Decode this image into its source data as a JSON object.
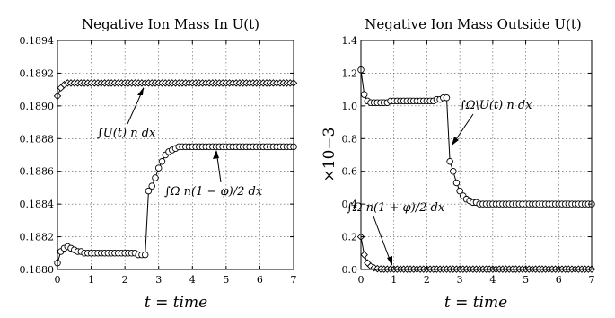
{
  "chart_data": [
    {
      "type": "line",
      "title": "Negative Ion Mass In U(t)",
      "xlabel": "t = time",
      "ylabel": "",
      "xlim": [
        0,
        7
      ],
      "ylim": [
        0.188,
        0.1894
      ],
      "xticks": [
        0,
        1,
        2,
        3,
        4,
        5,
        6,
        7
      ],
      "xtick_labels": [
        "0",
        "1",
        "2",
        "3",
        "4",
        "5",
        "6",
        "7"
      ],
      "yticks": [
        0.188,
        0.1882,
        0.1884,
        0.1886,
        0.1888,
        0.189,
        0.1892,
        0.1894
      ],
      "ytick_labels": [
        "0.1880",
        "0.1882",
        "0.1884",
        "0.1886",
        "0.1888",
        "0.1890",
        "0.1892",
        "0.1894"
      ],
      "grid": true,
      "series": [
        {
          "marker": "diamond",
          "x": [
            0,
            0.1,
            0.2,
            0.3,
            0.4,
            0.5,
            0.6,
            0.7,
            0.8,
            0.9,
            1.0,
            1.1,
            1.2,
            1.3,
            1.4,
            1.5,
            1.6,
            1.7,
            1.8,
            1.9,
            2.0,
            2.1,
            2.2,
            2.3,
            2.4,
            2.5,
            2.6,
            2.7,
            2.8,
            2.9,
            3.0,
            3.1,
            3.2,
            3.3,
            3.4,
            3.5,
            3.6,
            3.7,
            3.8,
            3.9,
            4.0,
            4.1,
            4.2,
            4.3,
            4.4,
            4.5,
            4.6,
            4.7,
            4.8,
            4.9,
            5.0,
            5.1,
            5.2,
            5.3,
            5.4,
            5.5,
            5.6,
            5.7,
            5.8,
            5.9,
            6.0,
            6.1,
            6.2,
            6.3,
            6.4,
            6.5,
            6.6,
            6.7,
            6.8,
            6.9,
            7.0
          ],
          "y": [
            0.18906,
            0.18911,
            0.18913,
            0.18914,
            0.18914,
            0.18914,
            0.18914,
            0.18914,
            0.18914,
            0.18914,
            0.18914,
            0.18914,
            0.18914,
            0.18914,
            0.18914,
            0.18914,
            0.18914,
            0.18914,
            0.18914,
            0.18914,
            0.18914,
            0.18914,
            0.18914,
            0.18914,
            0.18914,
            0.18914,
            0.18914,
            0.18914,
            0.18914,
            0.18914,
            0.18914,
            0.18914,
            0.18914,
            0.18914,
            0.18914,
            0.18914,
            0.18914,
            0.18914,
            0.18914,
            0.18914,
            0.18914,
            0.18914,
            0.18914,
            0.18914,
            0.18914,
            0.18914,
            0.18914,
            0.18914,
            0.18914,
            0.18914,
            0.18914,
            0.18914,
            0.18914,
            0.18914,
            0.18914,
            0.18914,
            0.18914,
            0.18914,
            0.18914,
            0.18914,
            0.18914,
            0.18914,
            0.18914,
            0.18914,
            0.18914,
            0.18914,
            0.18914,
            0.18914,
            0.18914,
            0.18914,
            0.18914
          ]
        },
        {
          "marker": "circle",
          "x": [
            0,
            0.1,
            0.2,
            0.3,
            0.4,
            0.5,
            0.6,
            0.7,
            0.8,
            0.9,
            1.0,
            1.1,
            1.2,
            1.3,
            1.4,
            1.5,
            1.6,
            1.7,
            1.8,
            1.9,
            2.0,
            2.1,
            2.2,
            2.3,
            2.4,
            2.5,
            2.6,
            2.7,
            2.8,
            2.9,
            3.0,
            3.1,
            3.2,
            3.3,
            3.4,
            3.5,
            3.6,
            3.7,
            3.8,
            3.9,
            4.0,
            4.1,
            4.2,
            4.3,
            4.4,
            4.5,
            4.6,
            4.7,
            4.8,
            4.9,
            5.0,
            5.1,
            5.2,
            5.3,
            5.4,
            5.5,
            5.6,
            5.7,
            5.8,
            5.9,
            6.0,
            6.1,
            6.2,
            6.3,
            6.4,
            6.5,
            6.6,
            6.7,
            6.8,
            6.9,
            7.0
          ],
          "y": [
            0.18804,
            0.18811,
            0.18813,
            0.18814,
            0.18813,
            0.18812,
            0.18811,
            0.18811,
            0.1881,
            0.1881,
            0.1881,
            0.1881,
            0.1881,
            0.1881,
            0.1881,
            0.1881,
            0.1881,
            0.1881,
            0.1881,
            0.1881,
            0.1881,
            0.1881,
            0.1881,
            0.1881,
            0.18809,
            0.18809,
            0.18809,
            0.18848,
            0.18851,
            0.18856,
            0.18862,
            0.18866,
            0.1887,
            0.18872,
            0.18873,
            0.18874,
            0.18875,
            0.18875,
            0.18875,
            0.18875,
            0.18875,
            0.18875,
            0.18875,
            0.18875,
            0.18875,
            0.18875,
            0.18875,
            0.18875,
            0.18875,
            0.18875,
            0.18875,
            0.18875,
            0.18875,
            0.18875,
            0.18875,
            0.18875,
            0.18875,
            0.18875,
            0.18875,
            0.18875,
            0.18875,
            0.18875,
            0.18875,
            0.18875,
            0.18875,
            0.18875,
            0.18875,
            0.18875,
            0.18875,
            0.18875,
            0.18875
          ]
        }
      ],
      "annotations": [
        {
          "text": "∫U(t) n dx",
          "arrow_to": [
            3.0,
            0.18914
          ]
        },
        {
          "text": "∫Ω n(1 − φ)/2 dx",
          "arrow_to": [
            4.7,
            0.18875
          ]
        }
      ]
    },
    {
      "type": "line",
      "title": "Negative Ion Mass Outside U(t)",
      "xlabel": "t = time",
      "ylabel": "×10−3",
      "xlim": [
        0,
        7
      ],
      "ylim": [
        0,
        1.4
      ],
      "xticks": [
        0,
        1,
        2,
        3,
        4,
        5,
        6,
        7
      ],
      "xtick_labels": [
        "0",
        "1",
        "2",
        "3",
        "4",
        "5",
        "6",
        "7"
      ],
      "yticks": [
        0,
        0.2,
        0.4,
        0.6,
        0.8,
        1.0,
        1.2,
        1.4
      ],
      "ytick_labels": [
        "0.0",
        "0.2",
        "0.4",
        "0.6",
        "0.8",
        "1.0",
        "1.2",
        "1.4"
      ],
      "grid": true,
      "series": [
        {
          "marker": "circle",
          "x": [
            0,
            0.1,
            0.2,
            0.3,
            0.4,
            0.5,
            0.6,
            0.7,
            0.8,
            0.9,
            1.0,
            1.1,
            1.2,
            1.3,
            1.4,
            1.5,
            1.6,
            1.7,
            1.8,
            1.9,
            2.0,
            2.1,
            2.2,
            2.3,
            2.4,
            2.5,
            2.6,
            2.7,
            2.8,
            2.9,
            3.0,
            3.1,
            3.2,
            3.3,
            3.4,
            3.5,
            3.6,
            3.7,
            3.8,
            3.9,
            4.0,
            4.1,
            4.2,
            4.3,
            4.4,
            4.5,
            4.6,
            4.7,
            4.8,
            4.9,
            5.0,
            5.1,
            5.2,
            5.3,
            5.4,
            5.5,
            5.6,
            5.7,
            5.8,
            5.9,
            6.0,
            6.1,
            6.2,
            6.3,
            6.4,
            6.5,
            6.6,
            6.7,
            6.8,
            6.9,
            7.0
          ],
          "y": [
            1.22,
            1.07,
            1.03,
            1.02,
            1.02,
            1.02,
            1.02,
            1.02,
            1.02,
            1.03,
            1.03,
            1.03,
            1.03,
            1.03,
            1.03,
            1.03,
            1.03,
            1.03,
            1.03,
            1.03,
            1.03,
            1.03,
            1.03,
            1.04,
            1.04,
            1.05,
            1.05,
            0.66,
            0.6,
            0.53,
            0.48,
            0.45,
            0.43,
            0.42,
            0.41,
            0.41,
            0.4,
            0.4,
            0.4,
            0.4,
            0.4,
            0.4,
            0.4,
            0.4,
            0.4,
            0.4,
            0.4,
            0.4,
            0.4,
            0.4,
            0.4,
            0.4,
            0.4,
            0.4,
            0.4,
            0.4,
            0.4,
            0.4,
            0.4,
            0.4,
            0.4,
            0.4,
            0.4,
            0.4,
            0.4,
            0.4,
            0.4,
            0.4,
            0.4,
            0.4,
            0.4
          ]
        },
        {
          "marker": "diamond",
          "x": [
            0,
            0.1,
            0.2,
            0.3,
            0.4,
            0.5,
            0.6,
            0.7,
            0.8,
            0.9,
            1.0,
            1.1,
            1.2,
            1.3,
            1.4,
            1.5,
            1.6,
            1.7,
            1.8,
            1.9,
            2.0,
            2.1,
            2.2,
            2.3,
            2.4,
            2.5,
            2.6,
            2.7,
            2.8,
            2.9,
            3.0,
            3.1,
            3.2,
            3.3,
            3.4,
            3.5,
            3.6,
            3.7,
            3.8,
            3.9,
            4.0,
            4.1,
            4.2,
            4.3,
            4.4,
            4.5,
            4.6,
            4.7,
            4.8,
            4.9,
            5.0,
            5.1,
            5.2,
            5.3,
            5.4,
            5.5,
            5.6,
            5.7,
            5.8,
            5.9,
            6.0,
            6.1,
            6.2,
            6.3,
            6.4,
            6.5,
            6.6,
            6.7,
            6.8,
            6.9,
            7.0
          ],
          "y": [
            0.2,
            0.09,
            0.04,
            0.02,
            0.01,
            0.005,
            0.003,
            0.002,
            0.002,
            0.002,
            0.002,
            0.002,
            0.002,
            0.002,
            0.002,
            0.002,
            0.002,
            0.002,
            0.002,
            0.002,
            0.002,
            0.002,
            0.002,
            0.002,
            0.002,
            0.002,
            0.002,
            0.002,
            0.002,
            0.002,
            0.002,
            0.002,
            0.002,
            0.002,
            0.002,
            0.002,
            0.002,
            0.002,
            0.002,
            0.002,
            0.002,
            0.002,
            0.002,
            0.002,
            0.002,
            0.002,
            0.002,
            0.002,
            0.002,
            0.002,
            0.002,
            0.002,
            0.002,
            0.002,
            0.002,
            0.002,
            0.002,
            0.002,
            0.002,
            0.002,
            0.002,
            0.002,
            0.002,
            0.002,
            0.002,
            0.002,
            0.002,
            0.002,
            0.002,
            0.002,
            0.002
          ]
        }
      ],
      "annotations": [
        {
          "text": "∫Ω\\U(t) n dx",
          "arrow_to": [
            2.75,
            0.72
          ]
        },
        {
          "text": "∫Ω n(1 + φ)/2 dx",
          "arrow_to": [
            0.75,
            0.01
          ]
        }
      ]
    }
  ]
}
